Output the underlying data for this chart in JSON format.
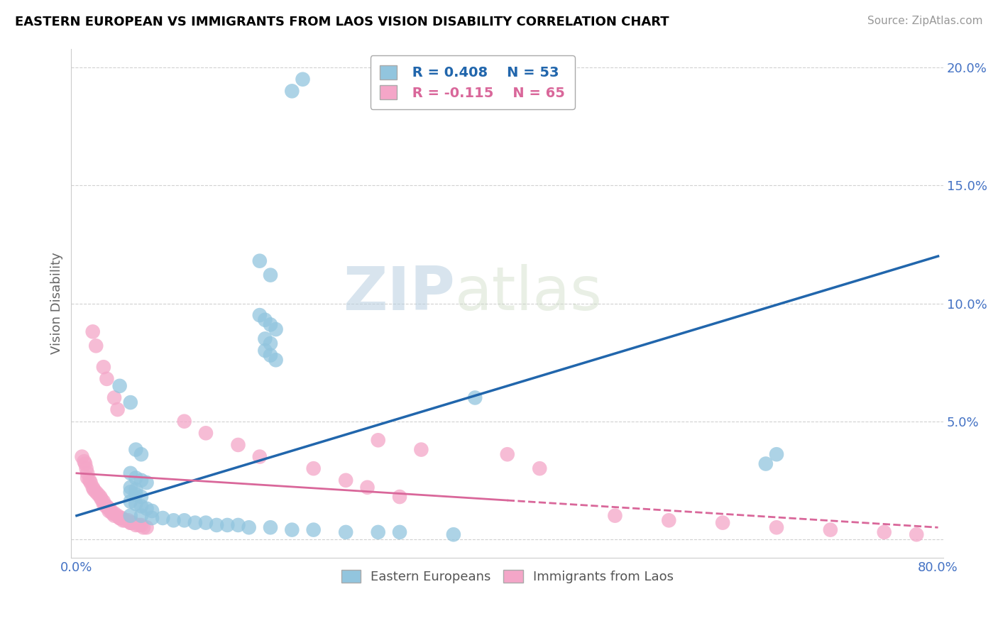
{
  "title": "EASTERN EUROPEAN VS IMMIGRANTS FROM LAOS VISION DISABILITY CORRELATION CHART",
  "source": "Source: ZipAtlas.com",
  "ylabel": "Vision Disability",
  "xlim": [
    -0.005,
    0.805
  ],
  "ylim": [
    -0.008,
    0.208
  ],
  "xticks": [
    0.0,
    0.1,
    0.2,
    0.3,
    0.4,
    0.5,
    0.6,
    0.7,
    0.8
  ],
  "xticklabels": [
    "0.0%",
    "",
    "",
    "",
    "",
    "",
    "",
    "",
    "80.0%"
  ],
  "yticks": [
    0.0,
    0.05,
    0.1,
    0.15,
    0.2
  ],
  "yticklabels": [
    "",
    "5.0%",
    "10.0%",
    "15.0%",
    "20.0%"
  ],
  "legend_r1": "R = 0.408",
  "legend_n1": "N = 53",
  "legend_r2": "R = -0.115",
  "legend_n2": "N = 65",
  "blue_color": "#92c5de",
  "pink_color": "#f4a6c8",
  "blue_line_color": "#2166ac",
  "pink_line_color": "#d9679a",
  "watermark_zip": "ZIP",
  "watermark_atlas": "atlas",
  "blue_scatter_x": [
    0.2,
    0.21,
    0.17,
    0.18,
    0.17,
    0.175,
    0.18,
    0.185,
    0.175,
    0.18,
    0.175,
    0.18,
    0.185,
    0.04,
    0.05,
    0.37,
    0.65,
    0.64,
    0.055,
    0.06,
    0.05,
    0.055,
    0.06,
    0.065,
    0.05,
    0.055,
    0.05,
    0.055,
    0.06,
    0.05,
    0.055,
    0.06,
    0.065,
    0.07,
    0.05,
    0.06,
    0.07,
    0.08,
    0.09,
    0.1,
    0.11,
    0.12,
    0.13,
    0.14,
    0.15,
    0.16,
    0.18,
    0.2,
    0.22,
    0.25,
    0.28,
    0.3,
    0.35
  ],
  "blue_scatter_y": [
    0.19,
    0.195,
    0.118,
    0.112,
    0.095,
    0.093,
    0.091,
    0.089,
    0.085,
    0.083,
    0.08,
    0.078,
    0.076,
    0.065,
    0.058,
    0.06,
    0.036,
    0.032,
    0.038,
    0.036,
    0.028,
    0.026,
    0.025,
    0.024,
    0.022,
    0.021,
    0.02,
    0.019,
    0.018,
    0.016,
    0.015,
    0.014,
    0.013,
    0.012,
    0.01,
    0.01,
    0.009,
    0.009,
    0.008,
    0.008,
    0.007,
    0.007,
    0.006,
    0.006,
    0.006,
    0.005,
    0.005,
    0.004,
    0.004,
    0.003,
    0.003,
    0.003,
    0.002
  ],
  "pink_scatter_x": [
    0.005,
    0.007,
    0.008,
    0.009,
    0.01,
    0.01,
    0.012,
    0.013,
    0.015,
    0.016,
    0.018,
    0.02,
    0.022,
    0.023,
    0.025,
    0.025,
    0.027,
    0.028,
    0.03,
    0.03,
    0.03,
    0.032,
    0.033,
    0.035,
    0.035,
    0.038,
    0.04,
    0.04,
    0.042,
    0.043,
    0.045,
    0.048,
    0.05,
    0.05,
    0.052,
    0.055,
    0.058,
    0.06,
    0.062,
    0.065,
    0.015,
    0.018,
    0.025,
    0.028,
    0.035,
    0.038,
    0.4,
    0.43,
    0.28,
    0.32,
    0.1,
    0.12,
    0.15,
    0.17,
    0.22,
    0.25,
    0.27,
    0.3,
    0.5,
    0.55,
    0.6,
    0.65,
    0.7,
    0.75,
    0.78
  ],
  "pink_scatter_y": [
    0.035,
    0.033,
    0.032,
    0.03,
    0.028,
    0.026,
    0.025,
    0.024,
    0.022,
    0.021,
    0.02,
    0.019,
    0.018,
    0.017,
    0.016,
    0.015,
    0.014,
    0.014,
    0.013,
    0.013,
    0.012,
    0.012,
    0.011,
    0.011,
    0.01,
    0.01,
    0.009,
    0.009,
    0.009,
    0.008,
    0.008,
    0.008,
    0.007,
    0.007,
    0.007,
    0.006,
    0.006,
    0.006,
    0.005,
    0.005,
    0.088,
    0.082,
    0.073,
    0.068,
    0.06,
    0.055,
    0.036,
    0.03,
    0.042,
    0.038,
    0.05,
    0.045,
    0.04,
    0.035,
    0.03,
    0.025,
    0.022,
    0.018,
    0.01,
    0.008,
    0.007,
    0.005,
    0.004,
    0.003,
    0.002
  ],
  "blue_trend_x": [
    0.0,
    0.8
  ],
  "blue_trend_y": [
    0.01,
    0.12
  ],
  "pink_trend_x": [
    0.0,
    0.8
  ],
  "pink_trend_y": [
    0.028,
    0.005
  ]
}
